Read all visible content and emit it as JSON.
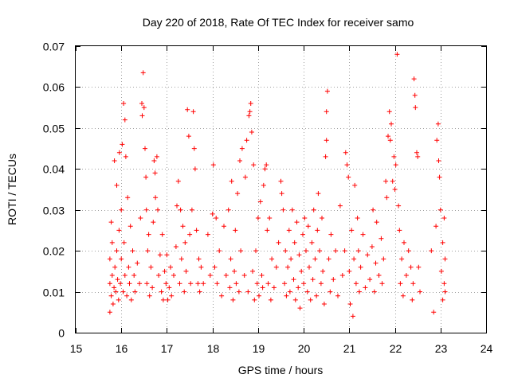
{
  "chart_data": {
    "type": "scatter",
    "title": "Day 220 of 2018, Rate Of TEC Index for receiver samo",
    "xlabel": "GPS time / hours",
    "ylabel": "ROTI / TECUs",
    "xlim": [
      15,
      24
    ],
    "ylim": [
      0,
      0.07
    ],
    "xticks": [
      15,
      16,
      17,
      18,
      19,
      20,
      21,
      22,
      23,
      24
    ],
    "xtick_labels": [
      "15",
      "16",
      "17",
      "18",
      "19",
      "20",
      "21",
      "22",
      "23",
      "24"
    ],
    "yticks": [
      0,
      0.01,
      0.02,
      0.03,
      0.04,
      0.05,
      0.06,
      0.07
    ],
    "ytick_labels": [
      "0",
      "0.01",
      "0.02",
      "0.03",
      "0.04",
      "0.05",
      "0.06",
      "0.07"
    ],
    "grid": true,
    "marker": "+",
    "series": [
      {
        "name": "ROTI",
        "color": "#ff0000",
        "points": [
          [
            15.75,
            0.012
          ],
          [
            15.75,
            0.018
          ],
          [
            15.75,
            0.005
          ],
          [
            15.78,
            0.027
          ],
          [
            15.78,
            0.009
          ],
          [
            15.8,
            0.014
          ],
          [
            15.8,
            0.022
          ],
          [
            15.82,
            0.007
          ],
          [
            15.84,
            0.011
          ],
          [
            15.85,
            0.042
          ],
          [
            15.86,
            0.016
          ],
          [
            15.88,
            0.01
          ],
          [
            15.9,
            0.02
          ],
          [
            15.9,
            0.036
          ],
          [
            15.92,
            0.013
          ],
          [
            15.94,
            0.008
          ],
          [
            15.95,
            0.025
          ],
          [
            15.96,
            0.044
          ],
          [
            15.98,
            0.012
          ],
          [
            16.0,
            0.018
          ],
          [
            16.0,
            0.03
          ],
          [
            16.02,
            0.046
          ],
          [
            16.04,
            0.01
          ],
          [
            16.05,
            0.056
          ],
          [
            16.06,
            0.022
          ],
          [
            16.08,
            0.052
          ],
          [
            16.08,
            0.014
          ],
          [
            16.1,
            0.043
          ],
          [
            16.12,
            0.009
          ],
          [
            16.14,
            0.033
          ],
          [
            16.16,
            0.016
          ],
          [
            16.18,
            0.012
          ],
          [
            16.2,
            0.026
          ],
          [
            16.22,
            0.008
          ],
          [
            16.25,
            0.02
          ],
          [
            16.28,
            0.014
          ],
          [
            16.3,
            0.01
          ],
          [
            16.35,
            0.017
          ],
          [
            16.4,
            0.012
          ],
          [
            16.42,
            0.028
          ],
          [
            16.45,
            0.056
          ],
          [
            16.46,
            0.053
          ],
          [
            16.48,
            0.0635
          ],
          [
            16.5,
            0.055
          ],
          [
            16.52,
            0.045
          ],
          [
            16.54,
            0.038
          ],
          [
            16.55,
            0.03
          ],
          [
            16.56,
            0.012
          ],
          [
            16.58,
            0.02
          ],
          [
            16.6,
            0.024
          ],
          [
            16.62,
            0.009
          ],
          [
            16.65,
            0.016
          ],
          [
            16.68,
            0.011
          ],
          [
            16.7,
            0.027
          ],
          [
            16.72,
            0.042
          ],
          [
            16.74,
            0.039
          ],
          [
            16.75,
            0.033
          ],
          [
            16.78,
            0.043
          ],
          [
            16.8,
            0.03
          ],
          [
            16.82,
            0.014
          ],
          [
            16.85,
            0.019
          ],
          [
            16.88,
            0.01
          ],
          [
            16.9,
            0.024
          ],
          [
            16.92,
            0.008
          ],
          [
            16.95,
            0.015
          ],
          [
            16.98,
            0.012
          ],
          [
            17.0,
            0.019
          ],
          [
            17.02,
            0.008
          ],
          [
            17.05,
            0.011
          ],
          [
            17.08,
            0.016
          ],
          [
            17.1,
            0.009
          ],
          [
            17.15,
            0.014
          ],
          [
            17.2,
            0.021
          ],
          [
            17.22,
            0.031
          ],
          [
            17.25,
            0.037
          ],
          [
            17.28,
            0.012
          ],
          [
            17.3,
            0.03
          ],
          [
            17.32,
            0.018
          ],
          [
            17.35,
            0.026
          ],
          [
            17.38,
            0.01
          ],
          [
            17.4,
            0.022
          ],
          [
            17.42,
            0.015
          ],
          [
            17.45,
            0.0545
          ],
          [
            17.48,
            0.048
          ],
          [
            17.5,
            0.024
          ],
          [
            17.52,
            0.012
          ],
          [
            17.55,
            0.03
          ],
          [
            17.58,
            0.054
          ],
          [
            17.6,
            0.045
          ],
          [
            17.62,
            0.04
          ],
          [
            17.65,
            0.025
          ],
          [
            17.68,
            0.012
          ],
          [
            17.7,
            0.018
          ],
          [
            17.72,
            0.01
          ],
          [
            17.75,
            0.016
          ],
          [
            17.8,
            0.012
          ],
          [
            17.9,
            0.024
          ],
          [
            17.95,
            0.014
          ],
          [
            18.0,
            0.029
          ],
          [
            18.02,
            0.041
          ],
          [
            18.05,
            0.016
          ],
          [
            18.08,
            0.028
          ],
          [
            18.1,
            0.012
          ],
          [
            18.15,
            0.02
          ],
          [
            18.2,
            0.009
          ],
          [
            18.25,
            0.026
          ],
          [
            18.3,
            0.014
          ],
          [
            18.35,
            0.03
          ],
          [
            18.38,
            0.011
          ],
          [
            18.4,
            0.018
          ],
          [
            18.42,
            0.037
          ],
          [
            18.45,
            0.008
          ],
          [
            18.48,
            0.015
          ],
          [
            18.5,
            0.025
          ],
          [
            18.52,
            0.012
          ],
          [
            18.55,
            0.034
          ],
          [
            18.58,
            0.01
          ],
          [
            18.6,
            0.042
          ],
          [
            18.62,
            0.02
          ],
          [
            18.65,
            0.045
          ],
          [
            18.7,
            0.014
          ],
          [
            18.72,
            0.038
          ],
          [
            18.75,
            0.047
          ],
          [
            18.78,
            0.01
          ],
          [
            18.8,
            0.053
          ],
          [
            18.82,
            0.054
          ],
          [
            18.84,
            0.056
          ],
          [
            18.86,
            0.049
          ],
          [
            18.88,
            0.015
          ],
          [
            18.9,
            0.041
          ],
          [
            18.92,
            0.008
          ],
          [
            18.95,
            0.02
          ],
          [
            18.98,
            0.012
          ],
          [
            19.0,
            0.028
          ],
          [
            19.02,
            0.009
          ],
          [
            19.05,
            0.032
          ],
          [
            19.08,
            0.014
          ],
          [
            19.1,
            0.011
          ],
          [
            19.12,
            0.036
          ],
          [
            19.15,
            0.04
          ],
          [
            19.18,
            0.041
          ],
          [
            19.2,
            0.025
          ],
          [
            19.22,
            0.012
          ],
          [
            19.25,
            0.028
          ],
          [
            19.28,
            0.008
          ],
          [
            19.3,
            0.018
          ],
          [
            19.35,
            0.011
          ],
          [
            19.4,
            0.016
          ],
          [
            19.45,
            0.022
          ],
          [
            19.5,
            0.037
          ],
          [
            19.52,
            0.034
          ],
          [
            19.55,
            0.03
          ],
          [
            19.58,
            0.012
          ],
          [
            19.6,
            0.02
          ],
          [
            19.62,
            0.009
          ],
          [
            19.65,
            0.016
          ],
          [
            19.68,
            0.025
          ],
          [
            19.7,
            0.01
          ],
          [
            19.72,
            0.018
          ],
          [
            19.75,
            0.03
          ],
          [
            19.78,
            0.013
          ],
          [
            19.8,
            0.022
          ],
          [
            19.82,
            0.008
          ],
          [
            19.85,
            0.027
          ],
          [
            19.88,
            0.011
          ],
          [
            19.9,
            0.019
          ],
          [
            19.92,
            0.006
          ],
          [
            19.95,
            0.015
          ],
          [
            19.98,
            0.024
          ],
          [
            20.0,
            0.012
          ],
          [
            20.02,
            0.028
          ],
          [
            20.05,
            0.02
          ],
          [
            20.08,
            0.01
          ],
          [
            20.1,
            0.026
          ],
          [
            20.12,
            0.016
          ],
          [
            20.15,
            0.008
          ],
          [
            20.18,
            0.022
          ],
          [
            20.2,
            0.013
          ],
          [
            20.22,
            0.03
          ],
          [
            20.25,
            0.018
          ],
          [
            20.28,
            0.009
          ],
          [
            20.3,
            0.025
          ],
          [
            20.32,
            0.034
          ],
          [
            20.35,
            0.02
          ],
          [
            20.38,
            0.012
          ],
          [
            20.4,
            0.028
          ],
          [
            20.42,
            0.015
          ],
          [
            20.45,
            0.007
          ],
          [
            20.48,
            0.043
          ],
          [
            20.5,
            0.047
          ],
          [
            20.5,
            0.054
          ],
          [
            20.52,
            0.059
          ],
          [
            20.55,
            0.018
          ],
          [
            20.58,
            0.01
          ],
          [
            20.6,
            0.024
          ],
          [
            20.65,
            0.013
          ],
          [
            20.7,
            0.02
          ],
          [
            20.75,
            0.009
          ],
          [
            20.8,
            0.031
          ],
          [
            20.85,
            0.014
          ],
          [
            20.9,
            0.02
          ],
          [
            20.92,
            0.044
          ],
          [
            20.95,
            0.041
          ],
          [
            20.98,
            0.038
          ],
          [
            21.0,
            0.015
          ],
          [
            21.02,
            0.007
          ],
          [
            21.05,
            0.025
          ],
          [
            21.08,
            0.004
          ],
          [
            21.1,
            0.018
          ],
          [
            21.12,
            0.036
          ],
          [
            21.15,
            0.012
          ],
          [
            21.18,
            0.028
          ],
          [
            21.2,
            0.02
          ],
          [
            21.22,
            0.01
          ],
          [
            21.25,
            0.016
          ],
          [
            21.3,
            0.024
          ],
          [
            21.35,
            0.011
          ],
          [
            21.4,
            0.019
          ],
          [
            21.45,
            0.013
          ],
          [
            21.5,
            0.021
          ],
          [
            21.52,
            0.03
          ],
          [
            21.55,
            0.01
          ],
          [
            21.58,
            0.017
          ],
          [
            21.6,
            0.027
          ],
          [
            21.65,
            0.014
          ],
          [
            21.7,
            0.023
          ],
          [
            21.72,
            0.012
          ],
          [
            21.75,
            0.018
          ],
          [
            21.8,
            0.037
          ],
          [
            21.82,
            0.033
          ],
          [
            21.85,
            0.048
          ],
          [
            21.88,
            0.054
          ],
          [
            21.9,
            0.047
          ],
          [
            21.92,
            0.051
          ],
          [
            21.95,
            0.037
          ],
          [
            21.98,
            0.043
          ],
          [
            22.0,
            0.035
          ],
          [
            22.02,
            0.041
          ],
          [
            22.05,
            0.068
          ],
          [
            22.08,
            0.031
          ],
          [
            22.1,
            0.025
          ],
          [
            22.12,
            0.012
          ],
          [
            22.15,
            0.018
          ],
          [
            22.18,
            0.009
          ],
          [
            22.2,
            0.022
          ],
          [
            22.25,
            0.014
          ],
          [
            22.3,
            0.02
          ],
          [
            22.35,
            0.016
          ],
          [
            22.38,
            0.008
          ],
          [
            22.4,
            0.012
          ],
          [
            22.42,
            0.062
          ],
          [
            22.44,
            0.058
          ],
          [
            22.45,
            0.055
          ],
          [
            22.48,
            0.044
          ],
          [
            22.5,
            0.043
          ],
          [
            22.52,
            0.016
          ],
          [
            22.55,
            0.01
          ],
          [
            22.8,
            0.02
          ],
          [
            22.85,
            0.005
          ],
          [
            22.9,
            0.026
          ],
          [
            22.92,
            0.047
          ],
          [
            22.95,
            0.051
          ],
          [
            22.96,
            0.042
          ],
          [
            22.98,
            0.038
          ],
          [
            23.0,
            0.03
          ],
          [
            23.02,
            0.015
          ],
          [
            23.05,
            0.008
          ],
          [
            23.05,
            0.022
          ],
          [
            23.08,
            0.012
          ],
          [
            23.08,
            0.028
          ],
          [
            23.1,
            0.018
          ],
          [
            23.1,
            0.01
          ]
        ]
      }
    ]
  }
}
